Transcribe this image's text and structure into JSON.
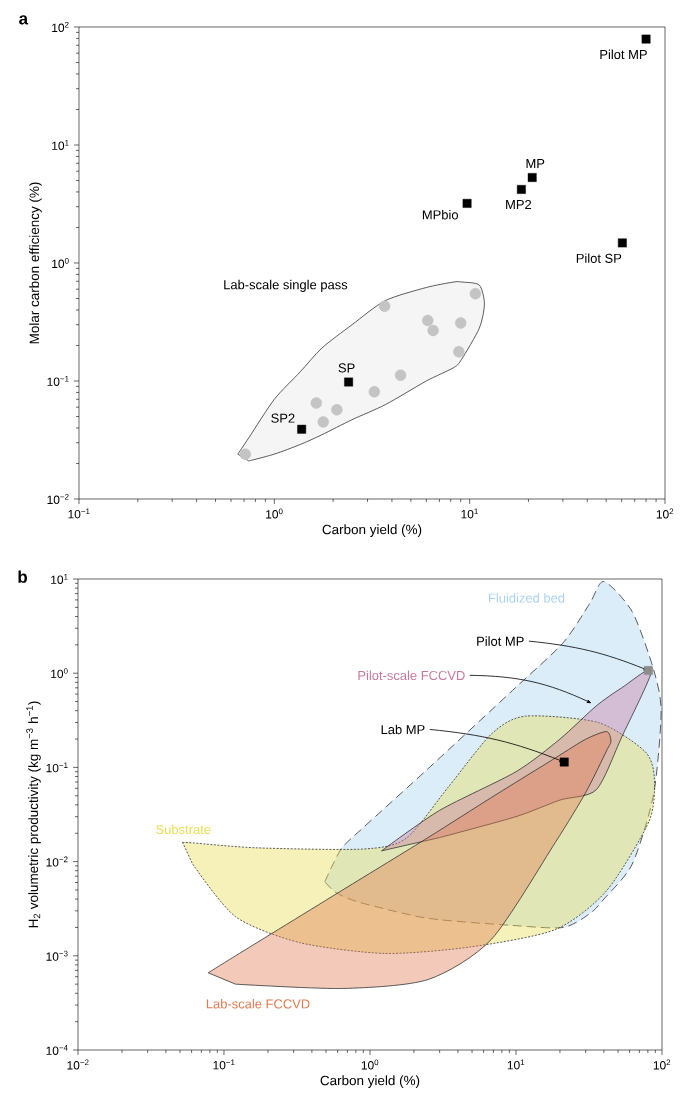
{
  "chart_data": [
    {
      "type": "scatter",
      "title": "a",
      "xlabel": "Carbon yield (%)",
      "ylabel": "Molar carbon efficiency (%)",
      "log": "xy",
      "xlim": [
        0.1,
        100
      ],
      "ylim": [
        0.01,
        100
      ],
      "xticks": [
        {
          "value": 0.1,
          "label": "10$^{−1}$"
        },
        {
          "value": 1,
          "label": "10$^{0}$"
        },
        {
          "value": 10,
          "label": "10$^{1}$"
        },
        {
          "value": 100,
          "label": "10$^{2}$"
        }
      ],
      "yticks": [
        {
          "value": 0.01,
          "label": "10$^{−2}$"
        },
        {
          "value": 0.1,
          "label": "10$^{−1}$"
        },
        {
          "value": 1,
          "label": "10$^{0}$"
        },
        {
          "value": 10,
          "label": "10$^{1}$"
        },
        {
          "value": 100,
          "label": "10$^{2}$"
        }
      ],
      "series": [
        {
          "name": "Lab-scale single pass",
          "type": "area",
          "color": "#e6e6e6",
          "line_style": "solid",
          "x": [
            0.65,
            0.74,
            1.0,
            1.36,
            1.75,
            2.5,
            3.7,
            6,
            8.3,
            9.1,
            11.2,
            11.9,
            11.2,
            9.1,
            8.3,
            6,
            3.7,
            2.5,
            1.75,
            1.36,
            1.0,
            0.74
          ],
          "values": [
            0.024,
            0.033,
            0.07,
            0.12,
            0.19,
            0.3,
            0.48,
            0.62,
            0.69,
            0.69,
            0.65,
            0.45,
            0.28,
            0.153,
            0.13,
            0.1,
            0.063,
            0.047,
            0.035,
            0.029,
            0.024,
            0.021
          ]
        },
        {
          "marker": "circle",
          "color": "#c4c4c4",
          "x": [
            0.71,
            1.64,
            1.78,
            2.09,
            3.25,
            4.43,
            3.67,
            6.1,
            6.5,
            9.0,
            8.8,
            10.7
          ],
          "values": [
            0.024,
            0.065,
            0.045,
            0.057,
            0.081,
            0.112,
            0.43,
            0.326,
            0.268,
            0.31,
            0.177,
            0.55
          ]
        },
        {
          "marker": "square",
          "color": "#000000",
          "x": [
            80,
            20.9,
            18.4,
            9.7,
            60.5,
            2.4,
            1.38
          ],
          "values": [
            79,
            5.3,
            4.2,
            3.2,
            1.48,
            0.098,
            0.039
          ]
        }
      ],
      "annotations": [
        {
          "text": "Pilot MP",
          "x": 80,
          "y": 79
        },
        {
          "text": "MP",
          "x": 20.9,
          "y": 5.3
        },
        {
          "text": "MP2",
          "x": 18.4,
          "y": 4.2
        },
        {
          "text": "MPbio",
          "x": 9.7,
          "y": 3.2
        },
        {
          "text": "Pilot SP",
          "x": 60.5,
          "y": 1.48
        },
        {
          "text": "SP",
          "x": 2.4,
          "y": 0.098
        },
        {
          "text": "SP2",
          "x": 1.38,
          "y": 0.039
        }
      ]
    },
    {
      "type": "area",
      "title": "b",
      "xlabel": "Carbon yield (%)",
      "ylabel": "H$_{2}$ volumetric productivity (kg m$^{−3}$ h$^{−1}$)",
      "log": "xy",
      "xlim": [
        0.01,
        100
      ],
      "ylim": [
        0.0001,
        10
      ],
      "xticks": [
        {
          "value": 0.01,
          "label": "10$^{−2}$"
        },
        {
          "value": 0.1,
          "label": "10$^{−1}$"
        },
        {
          "value": 1,
          "label": "10$^{0}$"
        },
        {
          "value": 10,
          "label": "10$^{1}$"
        },
        {
          "value": 100,
          "label": "10$^{2}$"
        }
      ],
      "yticks": [
        {
          "value": 0.0001,
          "label": "10$^{−4}$"
        },
        {
          "value": 0.001,
          "label": "10$^{−3}$"
        },
        {
          "value": 0.01,
          "label": "10$^{−2}$"
        },
        {
          "value": 0.1,
          "label": "10$^{−1}$"
        },
        {
          "value": 1,
          "label": "10$^{0}$"
        },
        {
          "value": 10,
          "label": "10$^{1}$"
        }
      ],
      "series": [
        {
          "name": "Fluidized bed",
          "color": "#a8d2f2",
          "line_style": "dashed",
          "x": [
            0.49,
            0.56,
            0.65,
            0.9,
            2.5,
            9.5,
            21,
            32,
            40,
            62.5,
            87.5,
            98.6,
            87.5,
            62.5,
            40,
            32,
            21,
            9.5,
            2.5,
            0.9,
            0.65,
            0.56
          ],
          "values": [
            0.0061,
            0.0095,
            0.0143,
            0.023,
            0.097,
            0.66,
            2.1,
            5.5,
            9.4,
            4.5,
            1.1,
            0.39,
            0.051,
            0.0094,
            0.004,
            0.0028,
            0.002,
            0.0021,
            0.0025,
            0.0036,
            0.0043,
            0.0049
          ]
        },
        {
          "name": "Substrate",
          "color": "#e8dc50",
          "line_style": "dotted",
          "x": [
            0.052,
            0.061,
            0.168,
            0.9,
            1.77,
            3.47,
            6.8,
            11.6,
            36.5,
            76,
            88.5,
            81.7,
            41.7,
            18.6,
            4.85,
            1.26,
            0.33,
            0.12,
            0.061
          ],
          "values": [
            0.016,
            0.0158,
            0.014,
            0.0136,
            0.0177,
            0.063,
            0.227,
            0.35,
            0.3,
            0.149,
            0.079,
            0.027,
            0.0049,
            0.0019,
            0.00124,
            0.00106,
            0.00138,
            0.0026,
            0.0094
          ]
        },
        {
          "name": "Pilot-scale FCCVD",
          "color": "#c8789e",
          "line_style": "solid",
          "x": [
            1.2,
            3,
            10,
            20,
            35.5,
            53,
            85,
            53,
            35.5,
            20,
            10,
            3
          ],
          "values": [
            0.013,
            0.035,
            0.09,
            0.2,
            0.45,
            0.7,
            1.07,
            0.21,
            0.058,
            0.045,
            0.03,
            0.018
          ]
        },
        {
          "name": "Lab-scale FCCVD",
          "color": "#e07a50",
          "line_style": "solid",
          "x": [
            0.078,
            0.12,
            0.65,
            2.5,
            6.8,
            18.6,
            30,
            41.7,
            44.7,
            41.7,
            30,
            18.6,
            6.8,
            2.5,
            0.65,
            0.12
          ],
          "values": [
            0.00066,
            0.001,
            0.005,
            0.018,
            0.048,
            0.126,
            0.199,
            0.24,
            0.19,
            0.15,
            0.054,
            0.016,
            0.0015,
            0.00056,
            0.00045,
            0.0005
          ]
        },
        {
          "type": "scatter",
          "marker": "square",
          "color": "#8c8c8c",
          "x": [
            80.7
          ],
          "values": [
            1.07
          ]
        },
        {
          "type": "scatter",
          "marker": "square",
          "color": "#000000",
          "x": [
            21.4
          ],
          "values": [
            0.114
          ]
        }
      ],
      "annotations": [
        {
          "text": "Pilot MP",
          "x": 80.7,
          "y": 1.07
        },
        {
          "text": "Lab MP",
          "x": 21.4,
          "y": 0.114
        }
      ]
    }
  ]
}
